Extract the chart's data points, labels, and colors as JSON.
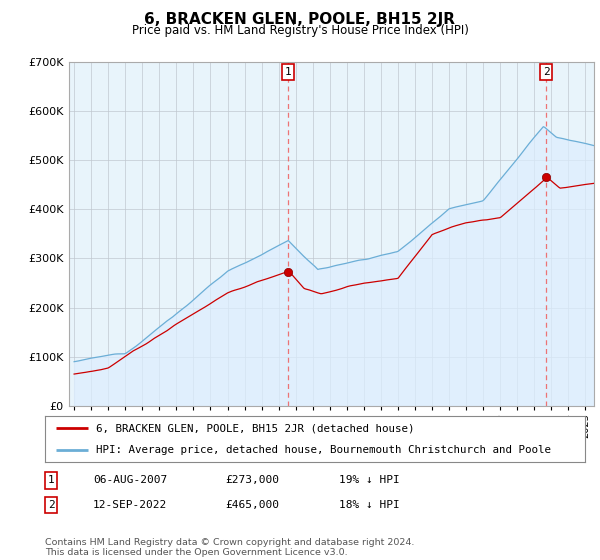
{
  "title": "6, BRACKEN GLEN, POOLE, BH15 2JR",
  "subtitle": "Price paid vs. HM Land Registry's House Price Index (HPI)",
  "ylim": [
    0,
    700000
  ],
  "yticks": [
    0,
    100000,
    200000,
    300000,
    400000,
    500000,
    600000,
    700000
  ],
  "hpi_color": "#6baed6",
  "hpi_fill_color": "#ddeeff",
  "price_color": "#cc0000",
  "bg_color": "#ffffff",
  "chart_bg": "#e8f4fb",
  "grid_color": "#c0c8d0",
  "vline_color": "#ee6666",
  "label_border_color": "#cc0000",
  "legend_property": "6, BRACKEN GLEN, POOLE, BH15 2JR (detached house)",
  "legend_hpi": "HPI: Average price, detached house, Bournemouth Christchurch and Poole",
  "footer": "Contains HM Land Registry data © Crown copyright and database right 2024.\nThis data is licensed under the Open Government Licence v3.0.",
  "sale1_year": 2007.6,
  "sale1_price": 273000,
  "sale2_year": 2022.7,
  "sale2_price": 465000,
  "table_rows": [
    [
      "1",
      "06-AUG-2007",
      "£273,000",
      "19% ↓ HPI"
    ],
    [
      "2",
      "12-SEP-2022",
      "£465,000",
      "18% ↓ HPI"
    ]
  ]
}
